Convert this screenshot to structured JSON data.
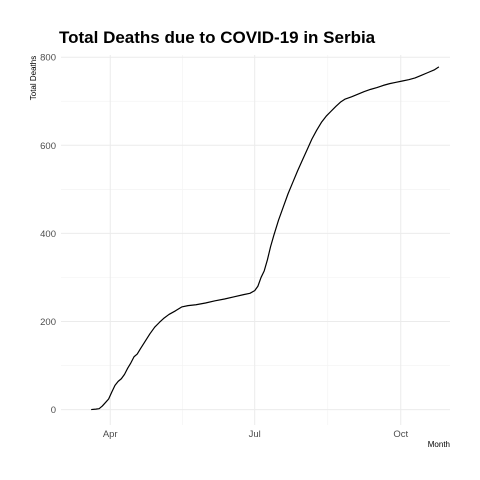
{
  "chart_data": {
    "type": "line",
    "title": "Total Deaths due to COVID-19 in Serbia",
    "xlabel": "Month",
    "ylabel": "Total Deaths",
    "x_ticks": [
      "Apr",
      "Jul",
      "Oct"
    ],
    "x_tick_dates": [
      "2020-04-01",
      "2020-07-01",
      "2020-10-01"
    ],
    "y_ticks": [
      0,
      200,
      400,
      600,
      800
    ],
    "xlim": [
      "2020-03-01",
      "2020-11-01"
    ],
    "ylim": [
      -35,
      805
    ],
    "grid": true,
    "series": [
      {
        "color": "#000000",
        "points": [
          [
            "2020-03-20",
            0
          ],
          [
            "2020-03-23",
            1
          ],
          [
            "2020-03-25",
            2
          ],
          [
            "2020-03-27",
            8
          ],
          [
            "2020-03-29",
            16
          ],
          [
            "2020-03-31",
            24
          ],
          [
            "2020-04-02",
            40
          ],
          [
            "2020-04-04",
            55
          ],
          [
            "2020-04-06",
            64
          ],
          [
            "2020-04-08",
            70
          ],
          [
            "2020-04-10",
            80
          ],
          [
            "2020-04-12",
            94
          ],
          [
            "2020-04-14",
            106
          ],
          [
            "2020-04-16",
            120
          ],
          [
            "2020-04-18",
            126
          ],
          [
            "2020-04-20",
            138
          ],
          [
            "2020-04-23",
            155
          ],
          [
            "2020-04-26",
            172
          ],
          [
            "2020-04-29",
            187
          ],
          [
            "2020-05-02",
            198
          ],
          [
            "2020-05-05",
            208
          ],
          [
            "2020-05-08",
            216
          ],
          [
            "2020-05-12",
            224
          ],
          [
            "2020-05-16",
            233
          ],
          [
            "2020-05-20",
            236
          ],
          [
            "2020-05-25",
            238
          ],
          [
            "2020-05-31",
            242
          ],
          [
            "2020-06-06",
            247
          ],
          [
            "2020-06-12",
            251
          ],
          [
            "2020-06-18",
            256
          ],
          [
            "2020-06-24",
            261
          ],
          [
            "2020-06-28",
            264
          ],
          [
            "2020-07-01",
            270
          ],
          [
            "2020-07-03",
            280
          ],
          [
            "2020-07-05",
            300
          ],
          [
            "2020-07-07",
            315
          ],
          [
            "2020-07-09",
            340
          ],
          [
            "2020-07-11",
            370
          ],
          [
            "2020-07-13",
            395
          ],
          [
            "2020-07-16",
            430
          ],
          [
            "2020-07-19",
            460
          ],
          [
            "2020-07-22",
            490
          ],
          [
            "2020-07-25",
            516
          ],
          [
            "2020-07-28",
            542
          ],
          [
            "2020-07-31",
            566
          ],
          [
            "2020-08-03",
            590
          ],
          [
            "2020-08-06",
            614
          ],
          [
            "2020-08-09",
            634
          ],
          [
            "2020-08-12",
            652
          ],
          [
            "2020-08-15",
            666
          ],
          [
            "2020-08-18",
            677
          ],
          [
            "2020-08-21",
            688
          ],
          [
            "2020-08-24",
            698
          ],
          [
            "2020-08-27",
            705
          ],
          [
            "2020-08-31",
            710
          ],
          [
            "2020-09-04",
            716
          ],
          [
            "2020-09-08",
            722
          ],
          [
            "2020-09-12",
            727
          ],
          [
            "2020-09-16",
            731
          ],
          [
            "2020-09-20",
            736
          ],
          [
            "2020-09-24",
            740
          ],
          [
            "2020-09-28",
            743
          ],
          [
            "2020-10-02",
            746
          ],
          [
            "2020-10-06",
            749
          ],
          [
            "2020-10-10",
            753
          ],
          [
            "2020-10-14",
            759
          ],
          [
            "2020-10-18",
            765
          ],
          [
            "2020-10-22",
            771
          ],
          [
            "2020-10-25",
            778
          ]
        ]
      }
    ]
  }
}
